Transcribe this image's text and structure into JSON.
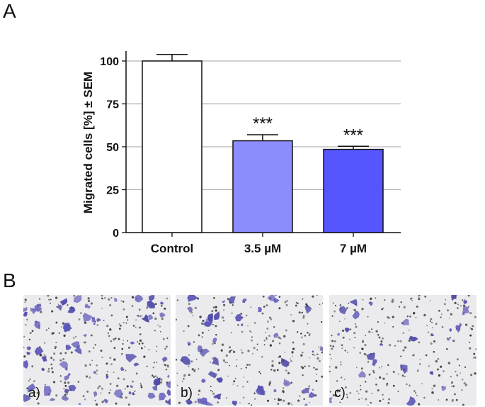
{
  "panels": {
    "a": "A",
    "b": "B"
  },
  "chart_data": {
    "type": "bar",
    "ylabel": "Migrated cells [%] ± SEM",
    "ylim": [
      0,
      100
    ],
    "yticks": [
      "0",
      "25",
      "50",
      "75",
      "100"
    ],
    "grid": true,
    "categories": [
      "Control",
      "3.5 µM",
      "7 µM"
    ],
    "values": [
      100,
      53.5,
      48.5
    ],
    "errors": [
      3.8,
      3.5,
      1.8
    ],
    "annotations": [
      "",
      "***",
      "***"
    ],
    "colors": [
      "#ffffff",
      "#8c8cff",
      "#5656ff"
    ]
  },
  "micrographs": [
    {
      "label": "a)",
      "density": 1.0
    },
    {
      "label": "b)",
      "density": 0.6
    },
    {
      "label": "c)",
      "density": 0.35
    }
  ]
}
